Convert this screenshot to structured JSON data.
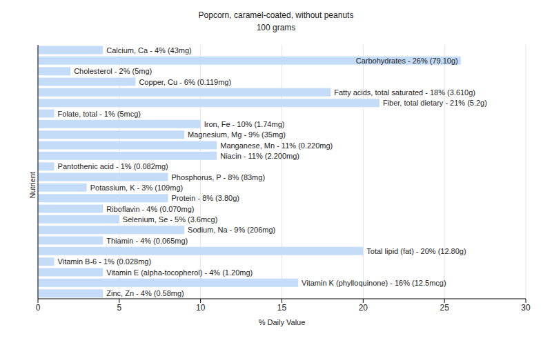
{
  "chart_data": {
    "type": "bar",
    "title": "Popcorn, caramel-coated, without peanuts",
    "subtitle": "100 grams",
    "x_label": "% Daily Value",
    "y_label": "Nutrient",
    "orientation": "horizontal",
    "categories": [
      "Calcium, Ca - 4% (43mg)",
      "Carbohydrates - 26% (79.10g)",
      "Cholesterol - 2% (5mg)",
      "Copper, Cu - 6% (0.119mg)",
      "Fatty acids, total saturated - 18% (3.610g)",
      "Fiber, total dietary - 21% (5.2g)",
      "Folate, total - 1% (5mcg)",
      "Iron, Fe - 10% (1.74mg)",
      "Magnesium, Mg - 9% (35mg)",
      "Manganese, Mn - 11% (0.220mg)",
      "Niacin - 11% (2.200mg)",
      "Pantothenic acid - 1% (0.082mg)",
      "Phosphorus, P - 8% (83mg)",
      "Potassium, K - 3% (109mg)",
      "Protein - 8% (3.80g)",
      "Riboflavin - 4% (0.070mg)",
      "Selenium, Se - 5% (3.6mcg)",
      "Sodium, Na - 9% (206mg)",
      "Thiamin - 4% (0.065mg)",
      "Total lipid (fat) - 20% (12.80g)",
      "Vitamin B-6 - 1% (0.028mg)",
      "Vitamin E (alpha-tocopherol) - 4% (1.20mg)",
      "Vitamin K (phylloquinone) - 16% (12.5mcg)",
      "Zinc, Zn - 4% (0.58mg)"
    ],
    "values": [
      4,
      26,
      2,
      6,
      18,
      21,
      1,
      10,
      9,
      11,
      11,
      1,
      8,
      3,
      8,
      4,
      5,
      9,
      4,
      20,
      1,
      4,
      16,
      4
    ],
    "color": "#c4dcf8",
    "xlim": [
      0,
      30
    ],
    "xticks": [
      0,
      5,
      10,
      15,
      20,
      25,
      30
    ],
    "grid": true,
    "tick_labels": "x"
  }
}
